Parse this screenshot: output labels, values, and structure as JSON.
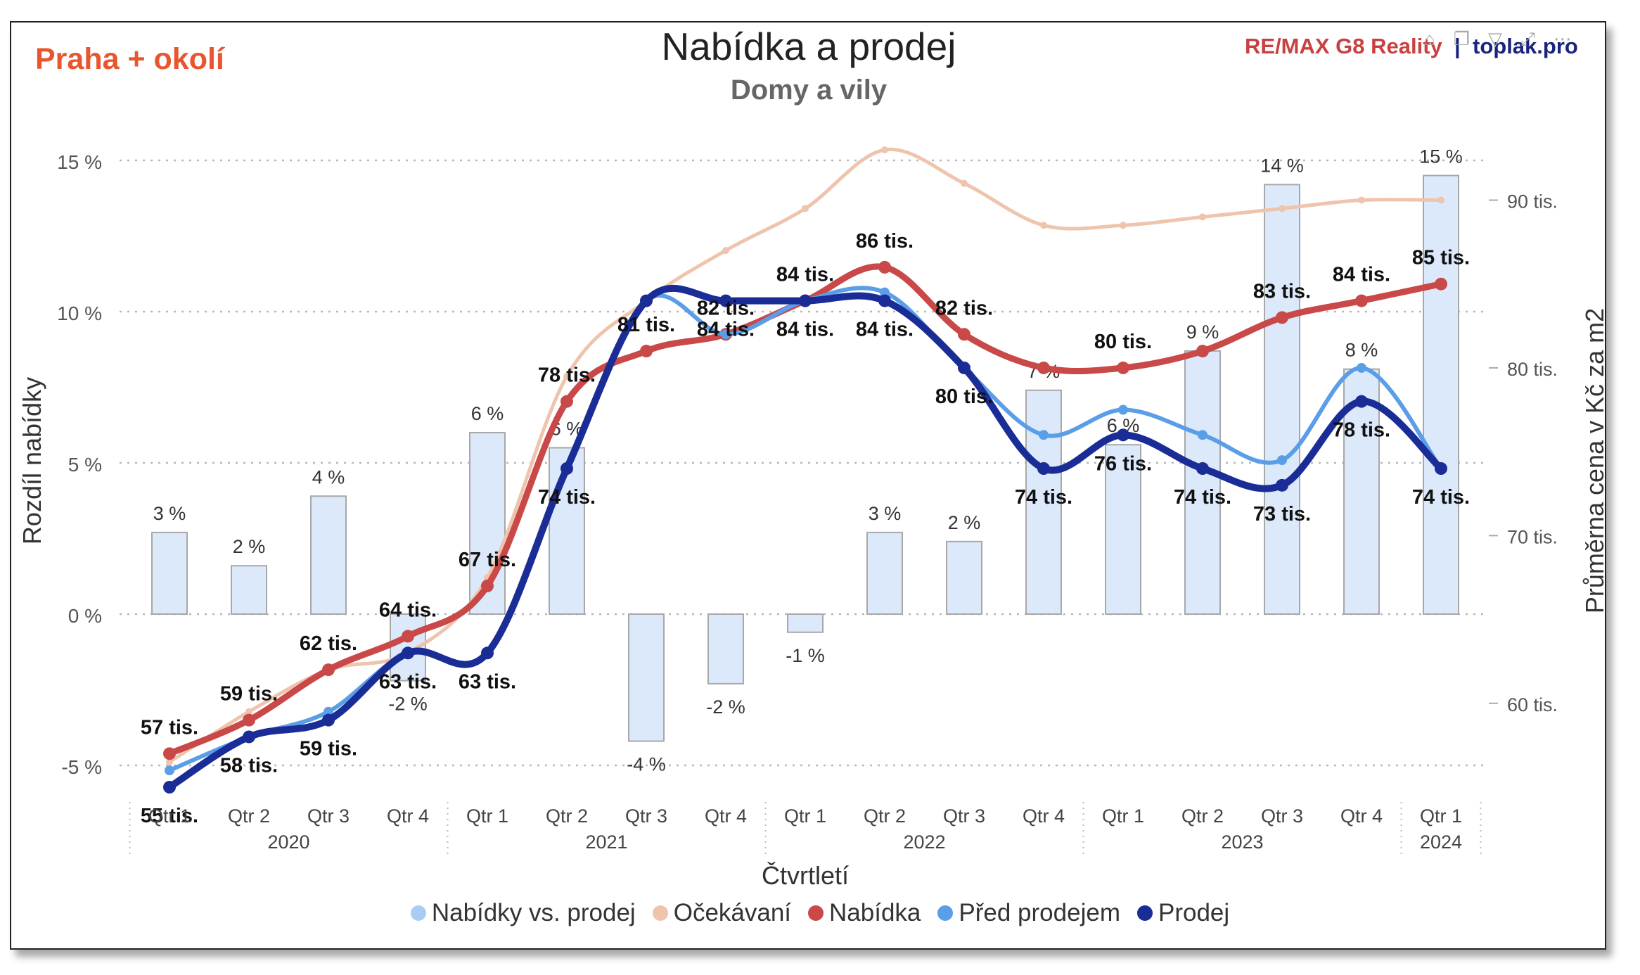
{
  "header": {
    "region": "Praha + okolí",
    "brand_remax": "RE/MAX G8 Reality",
    "brand_sep": "|",
    "brand_toplak": "toplak.pro"
  },
  "chart_data": {
    "type": "bar+line",
    "title": "Nabídka a prodej",
    "subtitle": "Domy a vily",
    "xlabel": "Čtvrtletí",
    "ylabel_left": "Rozdíl nabídky",
    "ylabel_right": "Průměrna cena v Kč za m2",
    "ylim_left": [
      -5,
      15
    ],
    "ylim_right": [
      55,
      93
    ],
    "yticks_left": [
      "-5 %",
      "0 %",
      "5 %",
      "10 %",
      "15 %"
    ],
    "yticks_right": [
      "60 tis.",
      "70 tis.",
      "80 tis.",
      "90 tis."
    ],
    "grid": "dotted horizontal",
    "legend_position": "bottom",
    "categories": [
      "Qtr 1",
      "Qtr 2",
      "Qtr 3",
      "Qtr 4",
      "Qtr 1",
      "Qtr 2",
      "Qtr 3",
      "Qtr 4",
      "Qtr 1",
      "Qtr 2",
      "Qtr 3",
      "Qtr 4",
      "Qtr 1",
      "Qtr 2",
      "Qtr 3",
      "Qtr 4",
      "Qtr 1"
    ],
    "years": [
      {
        "label": "2020",
        "start": 0,
        "end": 3
      },
      {
        "label": "2021",
        "start": 4,
        "end": 7
      },
      {
        "label": "2022",
        "start": 8,
        "end": 11
      },
      {
        "label": "2023",
        "start": 12,
        "end": 15
      },
      {
        "label": "2024",
        "start": 16,
        "end": 16
      }
    ],
    "bars": {
      "name": "Nabídky vs. prodej",
      "color": "#dbe9fb",
      "values": [
        2.7,
        1.6,
        3.9,
        -2.2,
        6.0,
        5.5,
        -4.2,
        -2.3,
        -0.6,
        2.7,
        2.4,
        7.4,
        5.6,
        8.7,
        14.2,
        8.1,
        14.5
      ],
      "labels": [
        "3 %",
        "2 %",
        "4 %",
        "-2 %",
        "6 %",
        "6 %",
        "-4 %",
        "-2 %",
        "-1 %",
        "3 %",
        "2 %",
        "7 %",
        "6 %",
        "9 %",
        "14 %",
        "8 %",
        "15 %"
      ]
    },
    "series": [
      {
        "name": "Očekávaní",
        "color": "#efc4ad",
        "values": [
          56.5,
          59.5,
          62.0,
          63.0,
          67.5,
          79.5,
          84.0,
          87.0,
          89.5,
          93.0,
          91.0,
          88.5,
          88.5,
          89.0,
          89.5,
          90.0,
          90.0
        ]
      },
      {
        "name": "Nabídka",
        "color": "#c94848",
        "values": [
          57,
          59,
          62,
          64,
          67,
          78,
          81,
          82,
          84,
          86,
          82,
          80,
          80,
          81,
          83,
          84,
          85
        ],
        "labels": [
          "57 tis.",
          "59 tis.",
          "62 tis.",
          "64 tis.",
          "67 tis.",
          "78 tis.",
          "81 tis.",
          "82 tis.",
          "84 tis.",
          "86 tis.",
          "82 tis.",
          "",
          "80 tis.",
          "",
          "83 tis.",
          "84 tis.",
          "85 tis."
        ]
      },
      {
        "name": "Před prodejem",
        "color": "#5a9ee8",
        "values": [
          56,
          58,
          59.5,
          63,
          63,
          74,
          84,
          82,
          84,
          84.5,
          80,
          76,
          77.5,
          76,
          74.5,
          80,
          74
        ]
      },
      {
        "name": "Prodej",
        "color": "#1a2c96",
        "values": [
          55,
          58,
          59,
          63,
          63,
          74,
          84,
          84,
          84,
          84,
          80,
          74,
          76,
          74,
          73,
          78,
          74
        ],
        "labels": [
          "55 tis.",
          "58 tis.",
          "59 tis.",
          "63 tis.",
          "63 tis.",
          "74 tis.",
          "",
          "84 tis.",
          "84 tis.",
          "84 tis.",
          "80 tis.",
          "74 tis.",
          "76 tis.",
          "74 tis.",
          "73 tis.",
          "78 tis.",
          "74 tis."
        ]
      }
    ]
  }
}
